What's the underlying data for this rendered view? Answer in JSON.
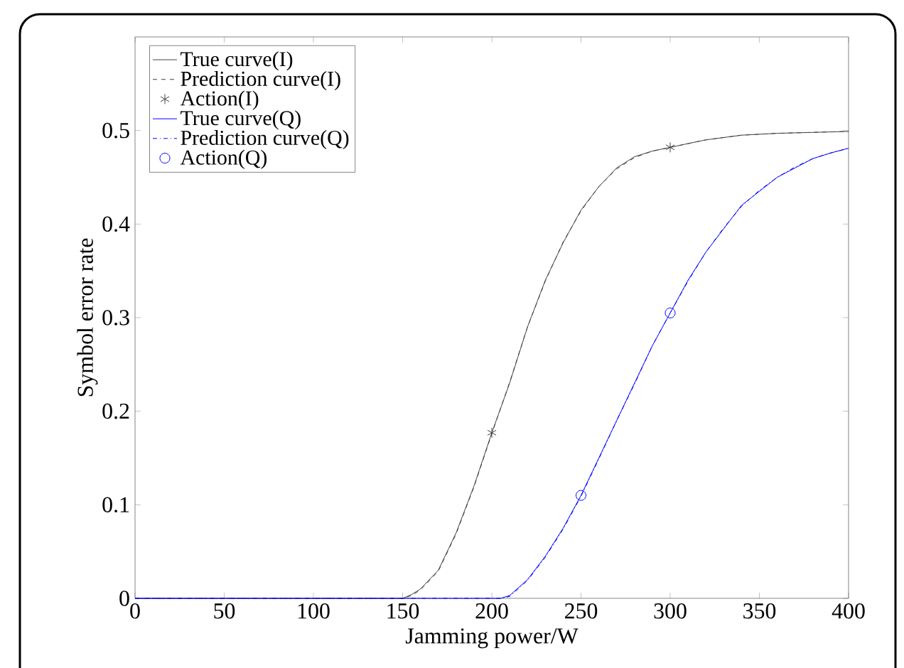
{
  "chart_data": {
    "type": "line",
    "xlabel": "Jamming power/W",
    "ylabel": "Symbol error rate",
    "xlim": [
      0,
      400
    ],
    "ylim": [
      0,
      0.6
    ],
    "xticks": [
      0,
      50,
      100,
      150,
      200,
      250,
      300,
      350,
      400
    ],
    "yticks": [
      0,
      0.1,
      0.2,
      0.3,
      0.4,
      0.5
    ],
    "legend": "top left",
    "grid": false,
    "series": [
      {
        "name": "True curve(I)",
        "color": "#404040",
        "line_style": "solid",
        "marker": "none",
        "x": [
          0,
          150,
          155,
          160,
          170,
          180,
          190,
          200,
          210,
          220,
          230,
          240,
          250,
          260,
          270,
          280,
          290,
          300,
          320,
          340,
          360,
          380,
          400
        ],
        "values": [
          0,
          0,
          0.004,
          0.01,
          0.03,
          0.07,
          0.12,
          0.177,
          0.23,
          0.29,
          0.34,
          0.38,
          0.415,
          0.44,
          0.46,
          0.472,
          0.478,
          0.482,
          0.49,
          0.495,
          0.497,
          0.498,
          0.499
        ]
      },
      {
        "name": "Prediction curve(I)",
        "color": "#404040",
        "line_style": "dashed",
        "marker": "none",
        "x": [
          0,
          150,
          155,
          160,
          170,
          180,
          190,
          200,
          210,
          220,
          230,
          240,
          250,
          260,
          270,
          280,
          290,
          300,
          320,
          340,
          360,
          380,
          400
        ],
        "values": [
          0,
          0,
          0.003,
          0.009,
          0.029,
          0.069,
          0.119,
          0.176,
          0.231,
          0.29,
          0.339,
          0.381,
          0.414,
          0.44,
          0.459,
          0.471,
          0.478,
          0.482,
          0.49,
          0.495,
          0.497,
          0.498,
          0.499
        ]
      },
      {
        "name": "Action(I)",
        "type": "scatter",
        "color": "#404040",
        "marker": "cross",
        "x": [
          200,
          300
        ],
        "values": [
          0.177,
          0.482
        ]
      },
      {
        "name": "True curve(Q)",
        "color": "#0000ff",
        "line_style": "solid",
        "marker": "none",
        "x": [
          0,
          205,
          210,
          220,
          230,
          240,
          250,
          260,
          270,
          280,
          290,
          300,
          310,
          320,
          330,
          340,
          350,
          360,
          370,
          380,
          390,
          400
        ],
        "values": [
          0,
          0,
          0.003,
          0.02,
          0.045,
          0.075,
          0.11,
          0.15,
          0.19,
          0.23,
          0.27,
          0.305,
          0.34,
          0.37,
          0.395,
          0.42,
          0.435,
          0.45,
          0.46,
          0.47,
          0.476,
          0.481
        ]
      },
      {
        "name": "Prediction curve(Q)",
        "color": "#0000ff",
        "line_style": "dashdot",
        "marker": "none",
        "x": [
          0,
          205,
          210,
          220,
          230,
          240,
          250,
          260,
          270,
          280,
          290,
          300,
          310,
          320,
          330,
          340,
          350,
          360,
          370,
          380,
          390,
          400
        ],
        "values": [
          0,
          0,
          0.002,
          0.019,
          0.044,
          0.074,
          0.109,
          0.149,
          0.19,
          0.229,
          0.27,
          0.305,
          0.339,
          0.37,
          0.396,
          0.419,
          0.436,
          0.45,
          0.461,
          0.47,
          0.476,
          0.481
        ]
      },
      {
        "name": "Action(Q)",
        "type": "scatter",
        "color": "#0000ff",
        "marker": "circle",
        "x": [
          250,
          300
        ],
        "values": [
          0.11,
          0.305
        ]
      }
    ]
  }
}
